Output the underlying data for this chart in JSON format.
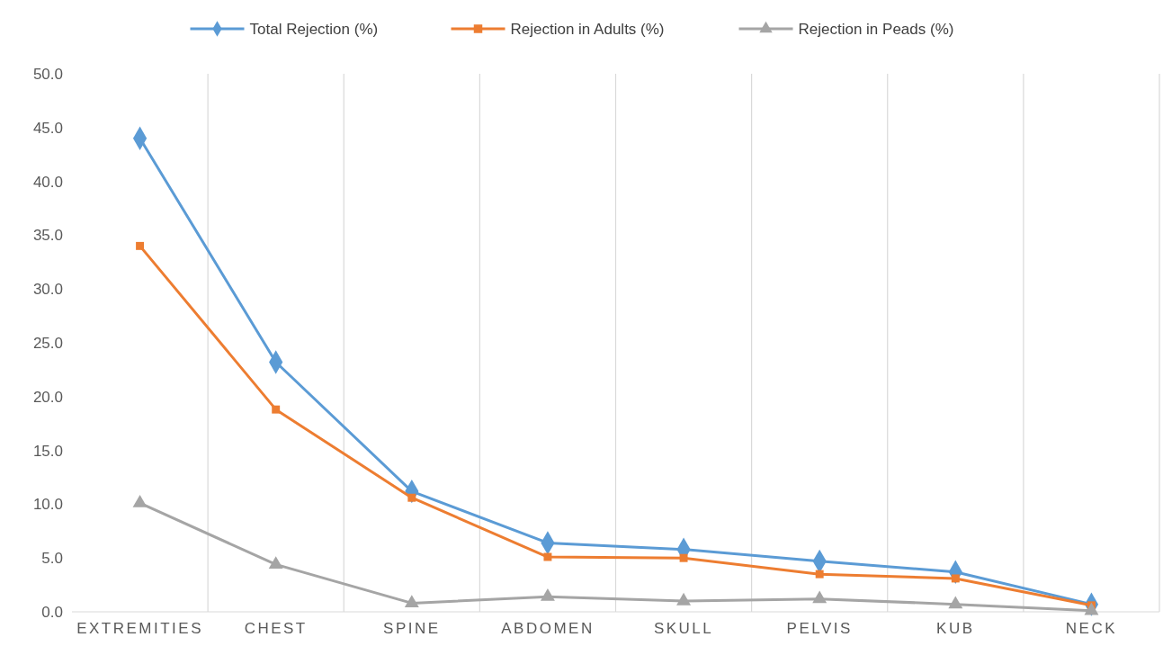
{
  "chart_data": {
    "type": "line",
    "categories": [
      "EXTREMITIES",
      "CHEST",
      "SPINE",
      "ABDOMEN",
      "SKULL",
      "PELVIS",
      "KUB",
      "NECK"
    ],
    "series": [
      {
        "name": "Total Rejection (%)",
        "color": "#5b9bd5",
        "marker": "diamond",
        "values": [
          44.0,
          23.2,
          11.2,
          6.4,
          5.8,
          4.7,
          3.7,
          0.7
        ]
      },
      {
        "name": "Rejection in Adults (%)",
        "color": "#ed7d31",
        "marker": "square",
        "values": [
          34.0,
          18.8,
          10.6,
          5.1,
          5.0,
          3.5,
          3.1,
          0.6
        ]
      },
      {
        "name": "Rejection in Peads (%)",
        "color": "#a5a5a5",
        "marker": "triangle",
        "values": [
          10.1,
          4.4,
          0.8,
          1.4,
          1.0,
          1.2,
          0.7,
          0.1
        ]
      }
    ],
    "ylim": [
      0,
      50
    ],
    "yticks": [
      {
        "value": 0,
        "label": "0.0"
      },
      {
        "value": 5,
        "label": "5.0"
      },
      {
        "value": 10,
        "label": "10.0"
      },
      {
        "value": 15,
        "label": "15.0"
      },
      {
        "value": 20,
        "label": "20.0"
      },
      {
        "value": 25,
        "label": "25.0"
      },
      {
        "value": 30,
        "label": "30.0"
      },
      {
        "value": 35,
        "label": "35.0"
      },
      {
        "value": 40,
        "label": "40.0"
      },
      {
        "value": 45,
        "label": "45.0"
      },
      {
        "value": 50,
        "label": "50.0"
      }
    ],
    "grid": "x",
    "legend": "top",
    "line_style": "solid"
  }
}
